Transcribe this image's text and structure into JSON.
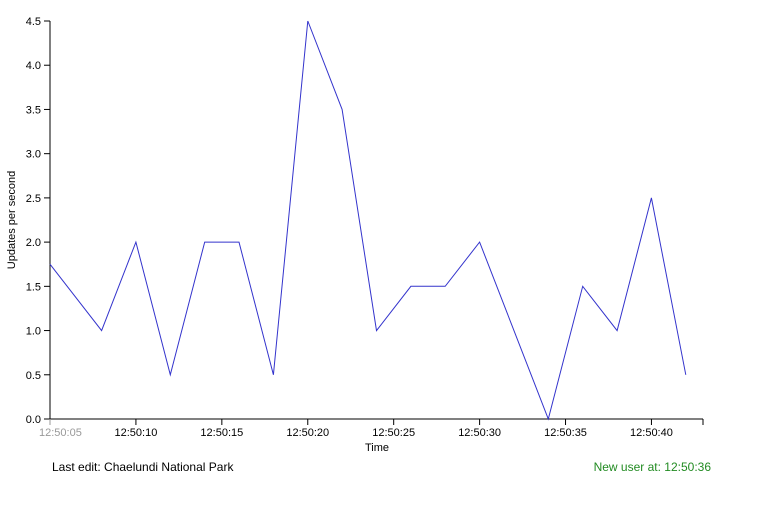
{
  "chart_data": {
    "type": "line",
    "xlabel": "Time",
    "ylabel": "Updates per second",
    "ylim": [
      0,
      4.5
    ],
    "yticks": [
      "0.0",
      "0.5",
      "1.0",
      "1.5",
      "2.0",
      "2.5",
      "3.0",
      "3.5",
      "4.0",
      "4.5"
    ],
    "xlim": [
      "12:50:05",
      "12:50:43"
    ],
    "xticks": [
      "12:50:05",
      "12:50:10",
      "12:50:15",
      "12:50:20",
      "12:50:25",
      "12:50:30",
      "12:50:35",
      "12:50:40"
    ],
    "grid": false,
    "series": [
      {
        "color": "#3333cc",
        "points": [
          {
            "t": "12:50:05",
            "v": 1.75
          },
          {
            "t": "12:50:08",
            "v": 1.0
          },
          {
            "t": "12:50:10",
            "v": 2.0
          },
          {
            "t": "12:50:12",
            "v": 0.5
          },
          {
            "t": "12:50:14",
            "v": 2.0
          },
          {
            "t": "12:50:16",
            "v": 2.0
          },
          {
            "t": "12:50:18",
            "v": 0.5
          },
          {
            "t": "12:50:20",
            "v": 4.5
          },
          {
            "t": "12:50:22",
            "v": 3.5
          },
          {
            "t": "12:50:24",
            "v": 1.0
          },
          {
            "t": "12:50:26",
            "v": 1.5
          },
          {
            "t": "12:50:28",
            "v": 1.5
          },
          {
            "t": "12:50:30",
            "v": 2.0
          },
          {
            "t": "12:50:34",
            "v": 0.0
          },
          {
            "t": "12:50:36",
            "v": 1.5
          },
          {
            "t": "12:50:38",
            "v": 1.0
          },
          {
            "t": "12:50:40",
            "v": 2.5
          },
          {
            "t": "12:50:42",
            "v": 0.5
          }
        ]
      }
    ]
  },
  "footer": {
    "last_edit": "Last edit: Chaelundi National Park",
    "new_user": "New user at: 12:50:36",
    "new_user_color": "#228b22"
  }
}
